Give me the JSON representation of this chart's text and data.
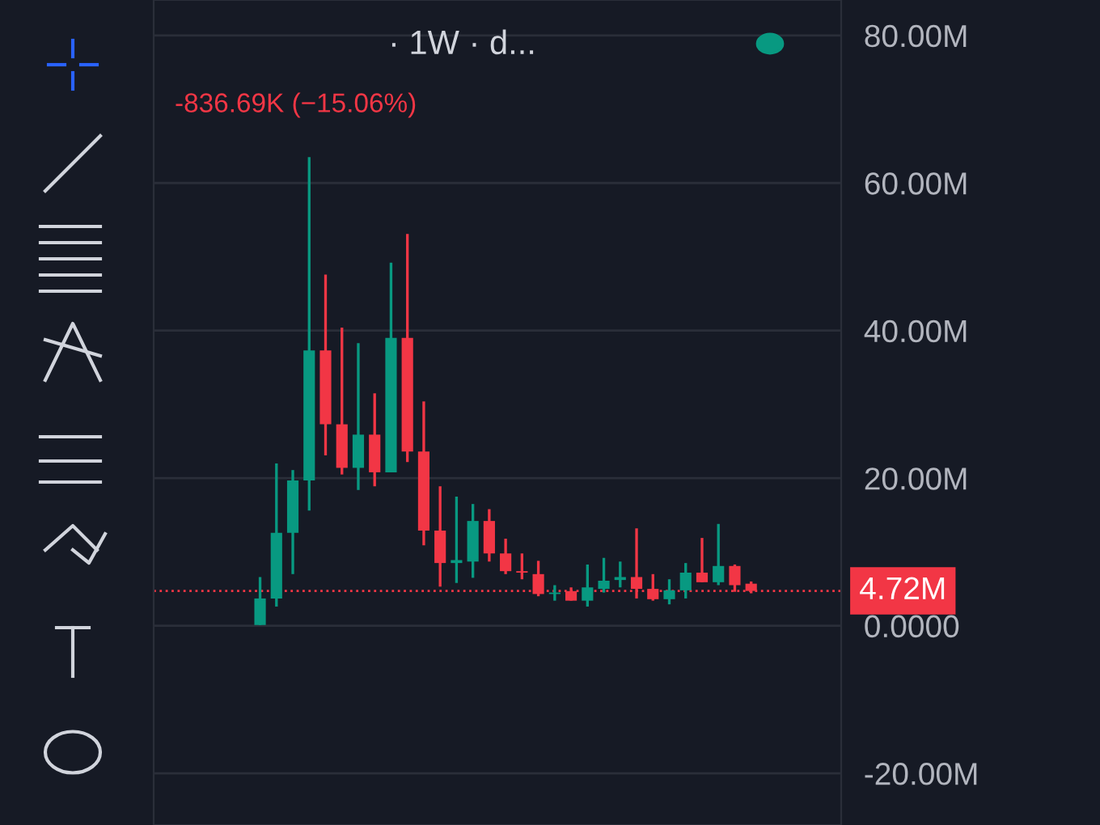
{
  "chart_data": {
    "type": "candlestick",
    "title": "· 1W · d...",
    "subtitle": "-836.69K (−15.06%)",
    "categories": [
      null,
      null,
      null,
      null,
      null,
      null,
      null,
      null,
      null,
      null,
      null,
      null,
      null,
      null,
      null,
      null,
      null,
      null,
      null,
      null,
      null,
      null,
      null,
      null,
      null,
      null,
      null,
      null,
      null,
      null,
      null
    ],
    "ohlc": [
      [
        0.1,
        6.6,
        0.1,
        3.7
      ],
      [
        3.7,
        22,
        2.6,
        12.6
      ],
      [
        12.6,
        21.1,
        7.0,
        19.7
      ],
      [
        19.7,
        63.5,
        15.6,
        37.3
      ],
      [
        37.3,
        47.6,
        23.1,
        27.3
      ],
      [
        27.3,
        40.4,
        20.5,
        21.4
      ],
      [
        21.4,
        38.3,
        18.4,
        25.9
      ],
      [
        25.9,
        31.5,
        18.9,
        20.8
      ],
      [
        20.8,
        49.2,
        20.8,
        39.0
      ],
      [
        39.0,
        53.1,
        22.2,
        23.6
      ],
      [
        23.6,
        30.4,
        10.9,
        12.9
      ],
      [
        12.9,
        18.9,
        5.3,
        8.5
      ],
      [
        8.5,
        17.5,
        5.8,
        8.9
      ],
      [
        8.7,
        16.5,
        6.5,
        14.2
      ],
      [
        14.2,
        15.8,
        8.7,
        9.8
      ],
      [
        9.8,
        11.8,
        7.0,
        7.4
      ],
      [
        7.4,
        9.8,
        6.3,
        7.2
      ],
      [
        7.0,
        8.8,
        4.0,
        4.3
      ],
      [
        4.3,
        5.5,
        3.4,
        4.5
      ],
      [
        4.7,
        5.2,
        3.4,
        3.4
      ],
      [
        3.4,
        8.3,
        2.6,
        5.2
      ],
      [
        5.0,
        9.2,
        4.5,
        6.1
      ],
      [
        6.2,
        8.7,
        5.2,
        6.6
      ],
      [
        6.6,
        13.2,
        3.7,
        5.0
      ],
      [
        5.0,
        7.0,
        3.4,
        3.6
      ],
      [
        3.6,
        6.3,
        2.9,
        4.8
      ],
      [
        4.8,
        8.5,
        3.7,
        7.2
      ],
      [
        7.2,
        11.9,
        5.9,
        5.9
      ],
      [
        5.9,
        13.8,
        5.5,
        8.1
      ],
      [
        8.1,
        8.3,
        4.6,
        5.5
      ],
      [
        5.7,
        6.0,
        4.4,
        4.72
      ]
    ],
    "ylim": [
      -27,
      84.8
    ],
    "yticks": [
      {
        "value": 80,
        "label": "80.00M"
      },
      {
        "value": 60,
        "label": "60.00M"
      },
      {
        "value": 40,
        "label": "40.00M"
      },
      {
        "value": 20,
        "label": "20.00M"
      },
      {
        "value": 0,
        "label": "0.0000"
      },
      {
        "value": -20,
        "label": "-20.00M"
      }
    ],
    "ref_lines": [
      {
        "axis": "y",
        "value": 4.72,
        "label": "4.72M",
        "color": "#f23645",
        "line_style": "dotted"
      }
    ],
    "grid": "y",
    "tick_labels": "y"
  }
}
